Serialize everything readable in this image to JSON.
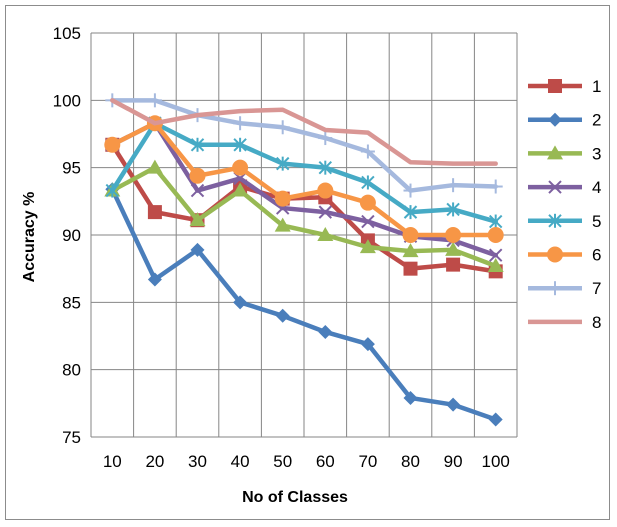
{
  "chart_data": {
    "type": "line",
    "title": "",
    "xlabel": "No of Classes",
    "ylabel": "Accuracy %",
    "x": [
      10,
      20,
      30,
      40,
      50,
      60,
      70,
      80,
      90,
      100
    ],
    "ylim": [
      75,
      105
    ],
    "yticks": [
      75,
      80,
      85,
      90,
      95,
      100,
      105
    ],
    "grid": "horizontal-and-vertical",
    "legend_position": "right",
    "series": [
      {
        "name": "1",
        "color": "#BE4B48",
        "marker": "square",
        "values": [
          96.7,
          91.7,
          91.1,
          93.6,
          92.7,
          92.8,
          89.6,
          87.5,
          87.8,
          87.3
        ]
      },
      {
        "name": "2",
        "color": "#4A7EBB",
        "marker": "diamond",
        "values": [
          93.4,
          86.7,
          88.9,
          85.0,
          84.0,
          82.8,
          81.9,
          77.9,
          77.4,
          76.3
        ]
      },
      {
        "name": "3",
        "color": "#98B954",
        "marker": "triangle",
        "values": [
          93.3,
          95.0,
          91.1,
          93.3,
          90.7,
          90.0,
          89.1,
          88.8,
          88.9,
          87.7
        ]
      },
      {
        "name": "4",
        "color": "#7D60A0",
        "marker": "x",
        "values": [
          96.7,
          98.3,
          93.3,
          94.2,
          92.0,
          91.7,
          91.0,
          89.9,
          89.6,
          88.5
        ]
      },
      {
        "name": "5",
        "color": "#46AAC5",
        "marker": "star",
        "values": [
          93.3,
          98.3,
          96.7,
          96.7,
          95.3,
          95.0,
          93.9,
          91.7,
          91.9,
          91.0
        ]
      },
      {
        "name": "6",
        "color": "#F79646",
        "marker": "circle",
        "values": [
          96.7,
          98.3,
          94.4,
          95.0,
          92.7,
          93.3,
          92.4,
          90.0,
          90.0,
          90.0
        ]
      },
      {
        "name": "7",
        "color": "#A5B9DE",
        "marker": "plus",
        "values": [
          100.0,
          100.0,
          98.9,
          98.3,
          98.0,
          97.2,
          96.2,
          93.3,
          93.7,
          93.6
        ]
      },
      {
        "name": "8",
        "color": "#D99694",
        "marker": "none",
        "values": [
          100.0,
          98.3,
          98.9,
          99.2,
          99.3,
          97.8,
          97.6,
          95.4,
          95.3,
          95.3
        ]
      }
    ]
  }
}
